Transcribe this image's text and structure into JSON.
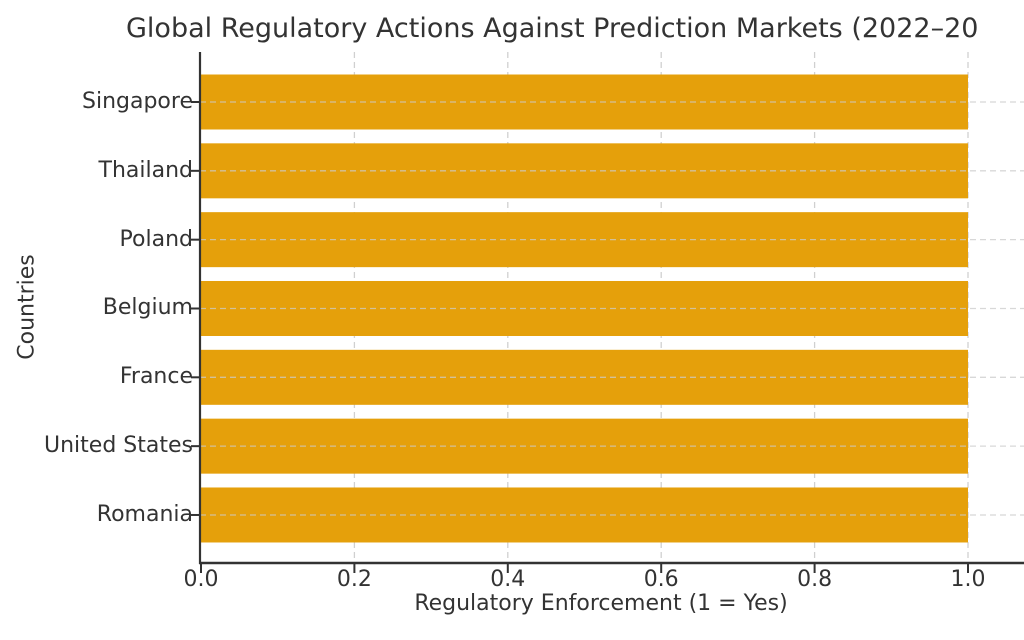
{
  "chart_data": {
    "type": "bar",
    "orientation": "horizontal",
    "title": "Global Regulatory Actions Against Prediction Markets (2022–20",
    "title_clipped_at_right_edge": true,
    "xlabel": "Regulatory Enforcement (1 = Yes)",
    "ylabel": "Countries",
    "categories": [
      "Singapore",
      "Thailand",
      "Poland",
      "Belgium",
      "France",
      "United States",
      "Romania"
    ],
    "values": [
      1.0,
      1.0,
      1.0,
      1.0,
      1.0,
      1.0,
      1.0
    ],
    "xticks": [
      0.0,
      0.2,
      0.4,
      0.6,
      0.8,
      1.0
    ],
    "xtick_labels": [
      "0.0",
      "0.2",
      "0.4",
      "0.6",
      "0.8",
      "1.0"
    ],
    "xlim": [
      0.0,
      1.073
    ],
    "grid": true,
    "grid_style": "dashed",
    "legend": "none",
    "colors": {
      "bar": "#E5A00B",
      "grid": "#CCCCCC",
      "axis": "#333333",
      "text": "#333333",
      "background": "#FFFFFF"
    }
  }
}
